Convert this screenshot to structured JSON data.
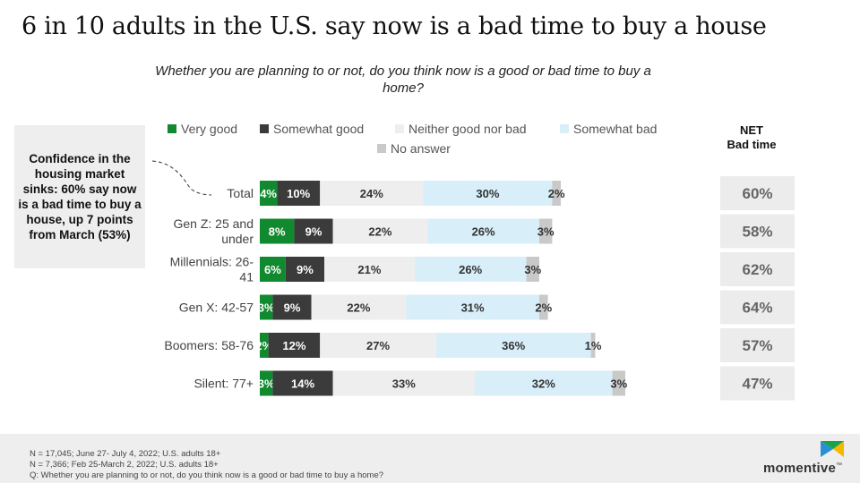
{
  "title": "6 in 10 adults in the U.S. say now is a bad time to buy a house",
  "subtitle": "Whether you are planning to or not, do you think now is a good or bad time to buy a home?",
  "callout": "Confidence in the housing market sinks: 60% say now is a bad time to buy a house, up 7 points from March (53%)",
  "net_header": [
    "NET",
    "Bad time"
  ],
  "footer": {
    "notes": [
      "N = 17,045; June 27- July 4, 2022; U.S. adults 18+",
      "N = 7,366; Feb 25-March 2, 2022; U.S. adults 18+",
      "Q: Whether you are planning to or not, do you think now is a good or bad time to buy a home?"
    ],
    "brand": "momentive",
    "brand_mark": "™"
  },
  "colors": {
    "very_good": "#118a2f",
    "somewhat_good": "#3b3b3b",
    "neither": "#eeeeee",
    "somewhat_bad": "#d8eef9",
    "no_answer": "#c9c9c9",
    "net_box": "#ececec",
    "net_text": "#666666"
  },
  "chart_data": {
    "type": "bar",
    "orientation": "horizontal-stacked",
    "categories": [
      "Total",
      "Gen Z: 25 and under",
      "Millennials: 26-41",
      "Gen X: 42-57",
      "Boomers: 58-76",
      "Silent: 77+"
    ],
    "category_lines": [
      [
        "Total"
      ],
      [
        "Gen Z: 25 and",
        "under"
      ],
      [
        "Millennials: 26-",
        "41"
      ],
      [
        "Gen X: 42-57"
      ],
      [
        "Boomers: 58-76"
      ],
      [
        "Silent: 77+"
      ]
    ],
    "series": [
      {
        "name": "Very good",
        "key": "very_good",
        "values": [
          4,
          8,
          6,
          3,
          2,
          3
        ]
      },
      {
        "name": "Somewhat good",
        "key": "somewhat_good",
        "values": [
          10,
          9,
          9,
          9,
          12,
          14
        ]
      },
      {
        "name": "Neither good nor bad",
        "key": "neither",
        "values": [
          24,
          22,
          21,
          22,
          27,
          33
        ]
      },
      {
        "name": "Somewhat bad",
        "key": "somewhat_bad",
        "values": [
          30,
          26,
          26,
          31,
          36,
          32
        ]
      },
      {
        "name": "No answer",
        "key": "no_answer",
        "values": [
          2,
          3,
          3,
          2,
          1,
          3
        ]
      }
    ],
    "net_bad_time": [
      60,
      58,
      62,
      64,
      57,
      47
    ],
    "xlim": [
      0,
      100
    ],
    "legend_position": "top"
  }
}
